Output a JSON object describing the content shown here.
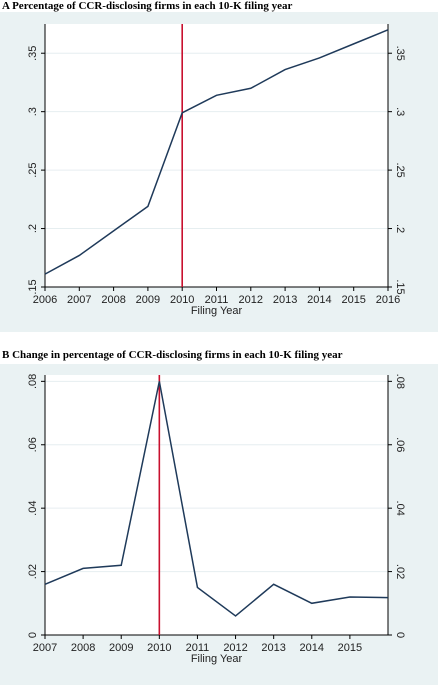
{
  "chart_data": [
    {
      "type": "line",
      "title": "A Percentage of CCR-disclosing firms in each 10-K filing year",
      "xlabel": "Filing Year",
      "ylabel": "",
      "x": [
        2006,
        2007,
        2008,
        2009,
        2010,
        2011,
        2012,
        2013,
        2014,
        2015,
        2016
      ],
      "series": [
        {
          "values": [
            0.161,
            0.177,
            0.198,
            0.219,
            0.299,
            0.314,
            0.32,
            0.336,
            0.346,
            0.358,
            0.37
          ]
        }
      ],
      "x_ticks": [
        "2006",
        "2007",
        "2008",
        "2009",
        "2010",
        "2011",
        "2012",
        "2013",
        "2014",
        "2015",
        "2016"
      ],
      "y_ticks": [
        ".15",
        ".2",
        ".25",
        ".3",
        ".35"
      ],
      "y_tick_values": [
        0.15,
        0.2,
        0.25,
        0.3,
        0.35
      ],
      "xlim": [
        2006,
        2016
      ],
      "ylim": [
        0.15,
        0.375
      ],
      "vline": 2010,
      "grid": true,
      "line_color": "#1f3a5a",
      "vline_color": "#c8102e"
    },
    {
      "type": "line",
      "title": "B Change in percentage of CCR-disclosing firms in each 10-K filing year",
      "xlabel": "Filing Year",
      "ylabel": "",
      "x": [
        2007,
        2008,
        2009,
        2010,
        2011,
        2012,
        2013,
        2014,
        2015,
        2016
      ],
      "series": [
        {
          "values": [
            0.016,
            0.021,
            0.022,
            0.08,
            0.015,
            0.006,
            0.016,
            0.01,
            0.012,
            0.0118
          ]
        }
      ],
      "x_ticks": [
        "2007",
        "2008",
        "2009",
        "2010",
        "2011",
        "2012",
        "2013",
        "2014",
        "2015"
      ],
      "x_tick_values": [
        2007,
        2008,
        2009,
        2010,
        2011,
        2012,
        2013,
        2014,
        2015
      ],
      "y_ticks": [
        "0",
        ".02",
        ".04",
        ".06",
        ".08"
      ],
      "y_tick_values": [
        0,
        0.02,
        0.04,
        0.06,
        0.08
      ],
      "xlim": [
        2007,
        2016
      ],
      "ylim": [
        0,
        0.082
      ],
      "vline": 2010,
      "grid": true,
      "line_color": "#1f3a5a",
      "vline_color": "#c8102e"
    }
  ]
}
